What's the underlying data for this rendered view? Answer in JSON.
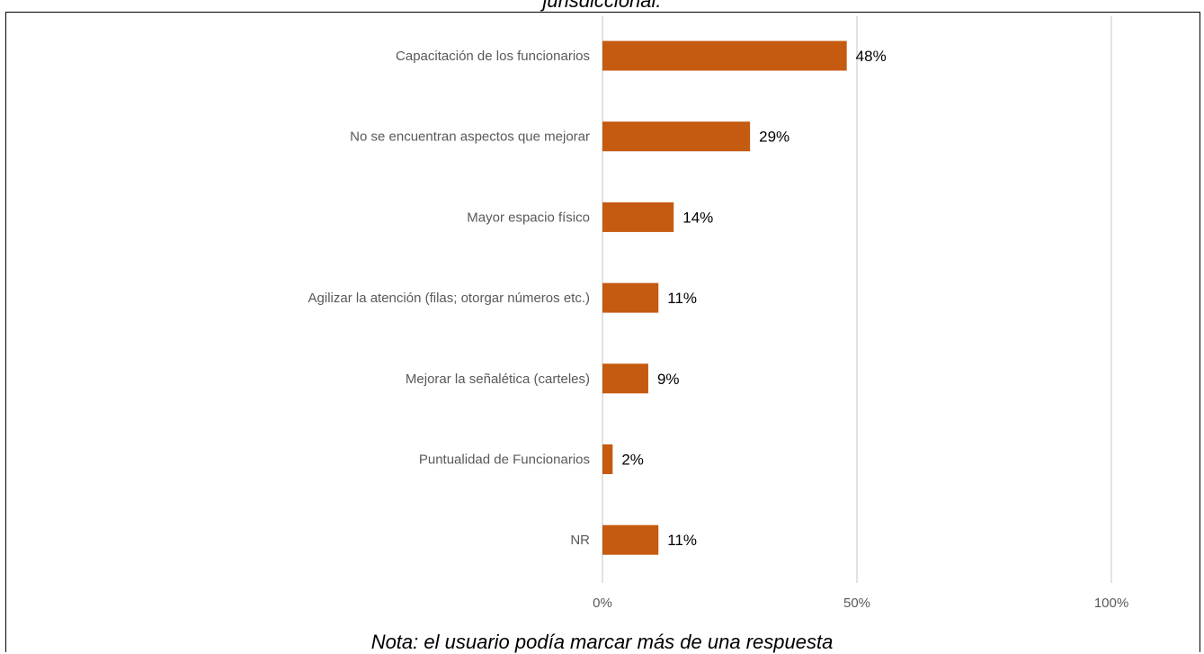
{
  "header": {
    "caption": "jurisdiccional."
  },
  "footer": {
    "note": "Nota: el usuario podía marcar más de una respuesta"
  },
  "colors": {
    "bar": "#C55A11",
    "grid": "#D9D9D9",
    "axis_text": "#595959"
  },
  "chart_data": {
    "type": "bar",
    "orientation": "horizontal",
    "categories": [
      "Capacitación de los funcionarios",
      "No se encuentran aspectos que mejorar",
      "Mayor espacio físico",
      "Agilizar la atención (filas; otorgar números etc.)",
      "Mejorar la señalética (carteles)",
      "Puntualidad de Funcionarios",
      "NR"
    ],
    "values": [
      48,
      29,
      14,
      11,
      9,
      2,
      11
    ],
    "data_labels": [
      "48%",
      "29%",
      "14%",
      "11%",
      "9%",
      "2%",
      "11%"
    ],
    "xlim": [
      0,
      100
    ],
    "xticks": [
      0,
      50,
      100
    ],
    "xtick_labels": [
      "0%",
      "50%",
      "100%"
    ],
    "grid": true,
    "legend": "none"
  }
}
